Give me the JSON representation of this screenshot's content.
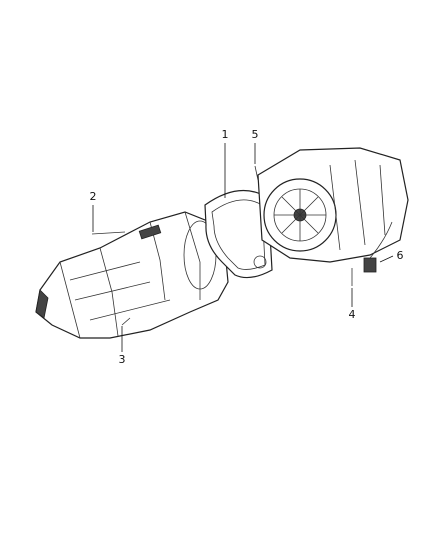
{
  "callouts": [
    {
      "label": "1"
    },
    {
      "label": "2"
    },
    {
      "label": "3"
    },
    {
      "label": "4"
    },
    {
      "label": "5"
    },
    {
      "label": "6"
    }
  ]
}
